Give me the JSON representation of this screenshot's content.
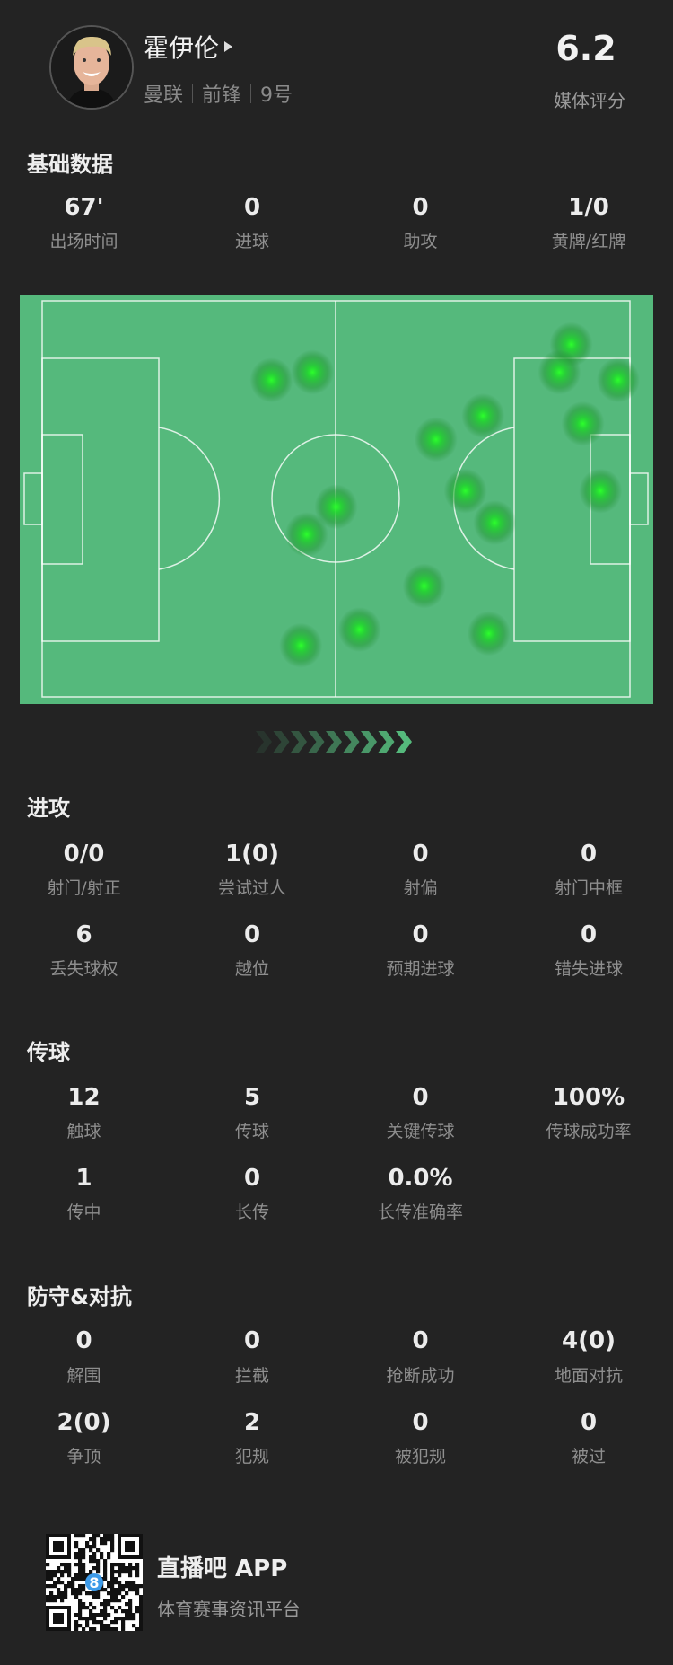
{
  "player": {
    "name": "霍伊伦",
    "team": "曼联",
    "position": "前锋",
    "number": "9号",
    "rating": "6.2",
    "rating_label": "媒体评分"
  },
  "basic": {
    "title": "基础数据",
    "rows": [
      [
        {
          "value": "67'",
          "label": "出场时间"
        },
        {
          "value": "0",
          "label": "进球"
        },
        {
          "value": "0",
          "label": "助攻"
        },
        {
          "value": "1/0",
          "label": "黄牌/红牌"
        }
      ]
    ]
  },
  "heatmap": {
    "pitch_color": "#55b97c",
    "dot_color": "#1fe62a",
    "touches_pct": [
      [
        39,
        20
      ],
      [
        46,
        18
      ],
      [
        90,
        11
      ],
      [
        88,
        18
      ],
      [
        98,
        20
      ],
      [
        75,
        29
      ],
      [
        67,
        35
      ],
      [
        92,
        31
      ],
      [
        50,
        52
      ],
      [
        45,
        59
      ],
      [
        72,
        48
      ],
      [
        77,
        56
      ],
      [
        95,
        48
      ],
      [
        65,
        72
      ],
      [
        54,
        83
      ],
      [
        44,
        87
      ],
      [
        76,
        84
      ]
    ],
    "direction": "attacking-right"
  },
  "attack": {
    "title": "进攻",
    "rows": [
      [
        {
          "value": "0/0",
          "label": "射门/射正"
        },
        {
          "value": "1(0)",
          "label": "尝试过人"
        },
        {
          "value": "0",
          "label": "射偏"
        },
        {
          "value": "0",
          "label": "射门中框"
        }
      ],
      [
        {
          "value": "6",
          "label": "丢失球权"
        },
        {
          "value": "0",
          "label": "越位"
        },
        {
          "value": "0",
          "label": "预期进球"
        },
        {
          "value": "0",
          "label": "错失进球"
        }
      ]
    ]
  },
  "passing": {
    "title": "传球",
    "rows": [
      [
        {
          "value": "12",
          "label": "触球"
        },
        {
          "value": "5",
          "label": "传球"
        },
        {
          "value": "0",
          "label": "关键传球"
        },
        {
          "value": "100%",
          "label": "传球成功率"
        }
      ],
      [
        {
          "value": "1",
          "label": "传中"
        },
        {
          "value": "0",
          "label": "长传"
        },
        {
          "value": "0.0%",
          "label": "长传准确率"
        }
      ]
    ]
  },
  "defense": {
    "title": "防守&对抗",
    "rows": [
      [
        {
          "value": "0",
          "label": "解围"
        },
        {
          "value": "0",
          "label": "拦截"
        },
        {
          "value": "0",
          "label": "抢断成功"
        },
        {
          "value": "4(0)",
          "label": "地面对抗"
        }
      ],
      [
        {
          "value": "2(0)",
          "label": "争顶"
        },
        {
          "value": "2",
          "label": "犯规"
        },
        {
          "value": "0",
          "label": "被犯规"
        },
        {
          "value": "0",
          "label": "被过"
        }
      ]
    ]
  },
  "footer": {
    "app_name": "直播吧 APP",
    "slogan": "体育赛事资讯平台",
    "qr_badge": "8",
    "qr_badge_color": "#3d9be9"
  }
}
